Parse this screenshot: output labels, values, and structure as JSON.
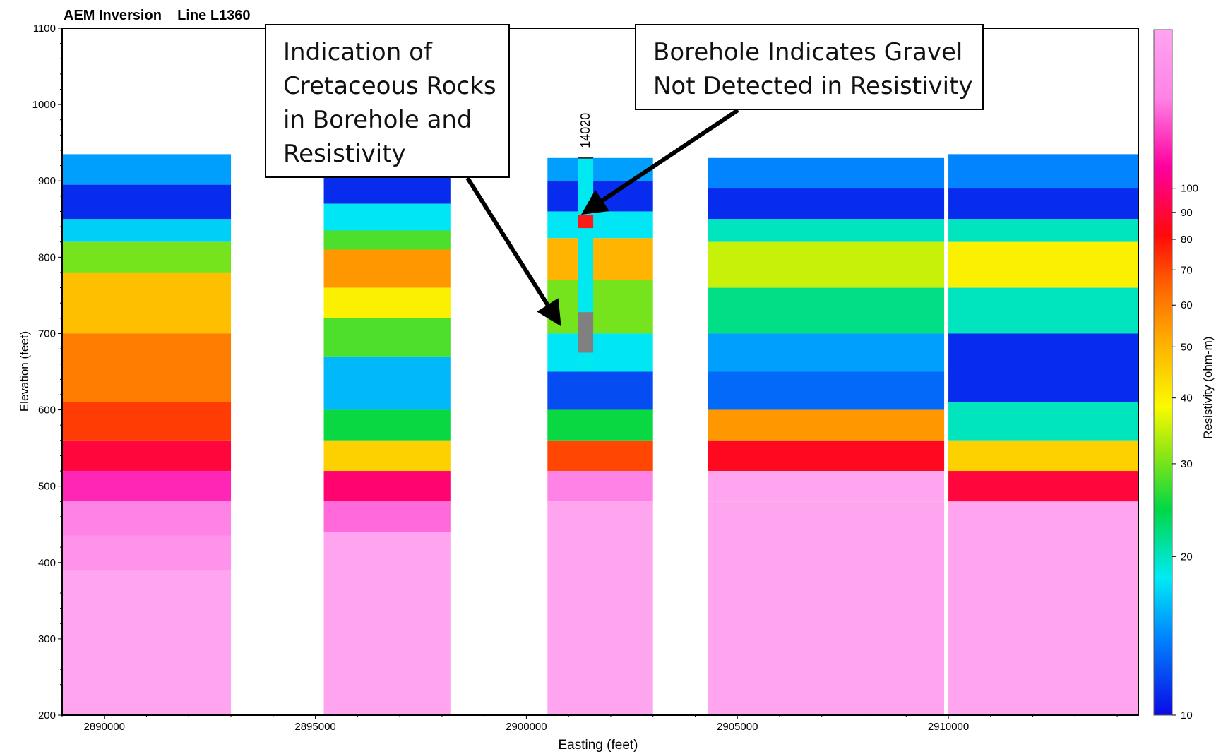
{
  "chart_data": {
    "type": "heatmap",
    "title": "AEM Inversion    Line L1360",
    "xlabel": "Easting (feet)",
    "ylabel": "Elevation (feet)",
    "xlim": [
      2889000,
      2914500
    ],
    "ylim": [
      200,
      1100
    ],
    "x_ticks": [
      2890000,
      2895000,
      2900000,
      2905000,
      2910000
    ],
    "y_ticks": [
      200,
      300,
      400,
      500,
      600,
      700,
      800,
      900,
      1000,
      1100
    ],
    "grid": false,
    "colorbar": {
      "label": "Resistivity (ohm-m)",
      "scale": "log",
      "range": [
        10,
        200
      ],
      "ticks": [
        10,
        20,
        30,
        40,
        50,
        60,
        70,
        80,
        90,
        100
      ]
    },
    "segments": [
      {
        "x": [
          2889000,
          2893000
        ],
        "layers": [
          {
            "top": 935,
            "bottom": 895,
            "rho": 15
          },
          {
            "top": 895,
            "bottom": 850,
            "rho": 11
          },
          {
            "top": 850,
            "bottom": 820,
            "rho": 17
          },
          {
            "top": 820,
            "bottom": 780,
            "rho": 30
          },
          {
            "top": 780,
            "bottom": 700,
            "rho": 48
          },
          {
            "top": 700,
            "bottom": 610,
            "rho": 60
          },
          {
            "top": 610,
            "bottom": 560,
            "rho": 72
          },
          {
            "top": 560,
            "bottom": 520,
            "rho": 90
          },
          {
            "top": 520,
            "bottom": 480,
            "rho": 120
          },
          {
            "top": 480,
            "bottom": 435,
            "rho": 150
          },
          {
            "top": 435,
            "bottom": 390,
            "rho": 170
          },
          {
            "top": 390,
            "bottom": 200,
            "rho": 210
          }
        ]
      },
      {
        "x": [
          2895200,
          2898200
        ],
        "layers": [
          {
            "top": 935,
            "bottom": 870,
            "rho": 11
          },
          {
            "top": 870,
            "bottom": 835,
            "rho": 18
          },
          {
            "top": 835,
            "bottom": 810,
            "rho": 28
          },
          {
            "top": 810,
            "bottom": 760,
            "rho": 55
          },
          {
            "top": 760,
            "bottom": 720,
            "rho": 40
          },
          {
            "top": 720,
            "bottom": 670,
            "rho": 28
          },
          {
            "top": 670,
            "bottom": 600,
            "rho": 16
          },
          {
            "top": 600,
            "bottom": 560,
            "rho": 25
          },
          {
            "top": 560,
            "bottom": 520,
            "rho": 45
          },
          {
            "top": 520,
            "bottom": 480,
            "rho": 100
          },
          {
            "top": 480,
            "bottom": 440,
            "rho": 140
          },
          {
            "top": 440,
            "bottom": 200,
            "rho": 210
          }
        ]
      },
      {
        "x": [
          2900500,
          2903000
        ],
        "layers": [
          {
            "top": 930,
            "bottom": 900,
            "rho": 15
          },
          {
            "top": 900,
            "bottom": 860,
            "rho": 11
          },
          {
            "top": 860,
            "bottom": 825,
            "rho": 18
          },
          {
            "top": 825,
            "bottom": 770,
            "rho": 50
          },
          {
            "top": 770,
            "bottom": 700,
            "rho": 30
          },
          {
            "top": 700,
            "bottom": 650,
            "rho": 18
          },
          {
            "top": 650,
            "bottom": 600,
            "rho": 12
          },
          {
            "top": 600,
            "bottom": 560,
            "rho": 25
          },
          {
            "top": 560,
            "bottom": 520,
            "rho": 70
          },
          {
            "top": 520,
            "bottom": 480,
            "rho": 150
          },
          {
            "top": 480,
            "bottom": 200,
            "rho": 210
          }
        ]
      },
      {
        "x": [
          2904300,
          2909900
        ],
        "layers": [
          {
            "top": 930,
            "bottom": 890,
            "rho": 14
          },
          {
            "top": 890,
            "bottom": 850,
            "rho": 11
          },
          {
            "top": 850,
            "bottom": 820,
            "rho": 20
          },
          {
            "top": 820,
            "bottom": 760,
            "rho": 35
          },
          {
            "top": 760,
            "bottom": 700,
            "rho": 22
          },
          {
            "top": 700,
            "bottom": 650,
            "rho": 15
          },
          {
            "top": 650,
            "bottom": 600,
            "rho": 13
          },
          {
            "top": 600,
            "bottom": 560,
            "rho": 55
          },
          {
            "top": 560,
            "bottom": 520,
            "rho": 85
          },
          {
            "top": 520,
            "bottom": 480,
            "rho": 200
          },
          {
            "top": 480,
            "bottom": 200,
            "rho": 210
          }
        ]
      },
      {
        "x": [
          2910000,
          2914500
        ],
        "layers": [
          {
            "top": 935,
            "bottom": 890,
            "rho": 14
          },
          {
            "top": 890,
            "bottom": 850,
            "rho": 11
          },
          {
            "top": 850,
            "bottom": 820,
            "rho": 20
          },
          {
            "top": 820,
            "bottom": 760,
            "rho": 40
          },
          {
            "top": 760,
            "bottom": 700,
            "rho": 20
          },
          {
            "top": 700,
            "bottom": 610,
            "rho": 11
          },
          {
            "top": 610,
            "bottom": 560,
            "rho": 20
          },
          {
            "top": 560,
            "bottom": 520,
            "rho": 45
          },
          {
            "top": 520,
            "bottom": 480,
            "rho": 90
          },
          {
            "top": 480,
            "bottom": 200,
            "rho": 210
          }
        ]
      }
    ],
    "borehole": {
      "label": "14020",
      "easting": 2901400,
      "top": 930,
      "bottom": 650,
      "intervals": [
        {
          "top": 930,
          "bottom": 855,
          "color": "#00e8f0"
        },
        {
          "top": 855,
          "bottom": 838,
          "color": "#ff1a1a"
        },
        {
          "top": 838,
          "bottom": 728,
          "color": "#00e8f0"
        },
        {
          "top": 728,
          "bottom": 675,
          "color": "#808080"
        },
        {
          "top": 675,
          "bottom": 650,
          "color": "#00e8f0"
        }
      ]
    },
    "annotations": [
      "Indication of\nCretaceous Rocks\nin Borehole and\nResistivity",
      "Borehole Indicates Gravel\nNot Detected in Resistivity"
    ]
  }
}
